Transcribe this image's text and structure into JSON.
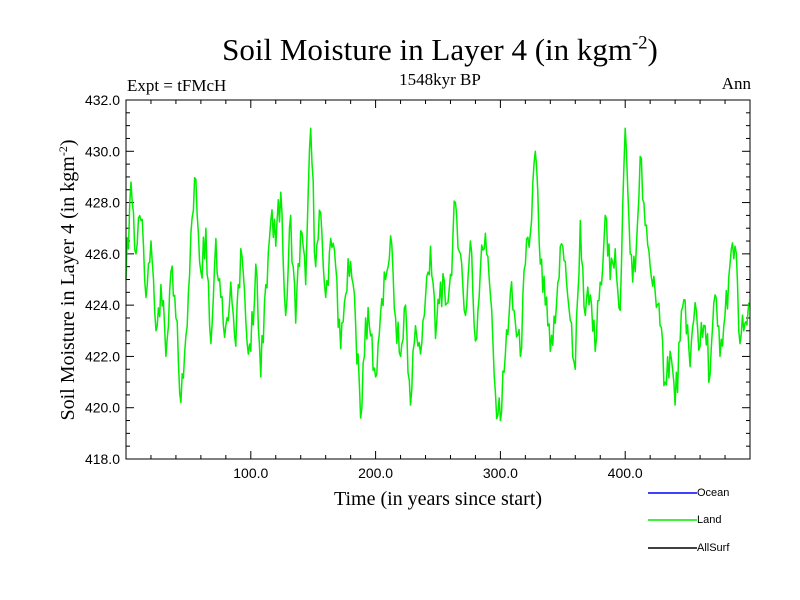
{
  "header": {
    "title_main": "Soil Moisture in Layer 4 (in kgm",
    "title_sup": "-2",
    "title_end": ")",
    "subtitle": "1548kyr BP",
    "expt": "Expt = tFMcH",
    "season": "Ann"
  },
  "chart_data": {
    "type": "line",
    "title": "Soil Moisture in Layer 4 (in kgm-2)",
    "xlabel": "Time (in years since start)",
    "ylabel_main": "Soil Moisture in Layer 4 (in kgm",
    "ylabel_sup": "-2",
    "ylabel_end": ")",
    "xlim": [
      0,
      500
    ],
    "ylim": [
      418.0,
      432.0
    ],
    "xticks": [
      100,
      200,
      300,
      400
    ],
    "xtick_labels": [
      "100.0",
      "200.0",
      "300.0",
      "400.0"
    ],
    "yticks": [
      418,
      420,
      422,
      424,
      426,
      428,
      430,
      432
    ],
    "ytick_labels": [
      "418.0",
      "420.0",
      "422.0",
      "424.0",
      "426.0",
      "428.0",
      "430.0",
      "432.0"
    ],
    "legend": [
      "Ocean",
      "Land",
      "AllSurf"
    ],
    "legend_position": "bottom-right",
    "series": [
      {
        "name": "Ocean",
        "color": "#0000ff",
        "x": [],
        "values": []
      },
      {
        "name": "AllSurf",
        "color": "#000000",
        "x": [],
        "values": []
      },
      {
        "name": "Land",
        "color": "#00ee00",
        "x": [
          0,
          4,
          8,
          12,
          16,
          20,
          24,
          28,
          32,
          36,
          40,
          44,
          48,
          52,
          56,
          60,
          64,
          68,
          72,
          76,
          80,
          84,
          88,
          92,
          96,
          100,
          104,
          108,
          112,
          116,
          120,
          124,
          128,
          132,
          136,
          140,
          144,
          148,
          152,
          156,
          160,
          164,
          168,
          172,
          176,
          180,
          184,
          188,
          192,
          196,
          200,
          204,
          208,
          212,
          216,
          220,
          224,
          228,
          232,
          236,
          240,
          244,
          248,
          252,
          256,
          260,
          264,
          268,
          272,
          276,
          280,
          284,
          288,
          292,
          296,
          300,
          304,
          308,
          312,
          316,
          320,
          324,
          328,
          332,
          336,
          340,
          344,
          348,
          352,
          356,
          360,
          364,
          368,
          372,
          376,
          380,
          384,
          388,
          392,
          396,
          400,
          404,
          408,
          412,
          416,
          420,
          424,
          428,
          432,
          436,
          440,
          444,
          448,
          452,
          456,
          460,
          464,
          468,
          472,
          476,
          480,
          484,
          488,
          492,
          496,
          499
        ],
        "values": [
          425.0,
          428.8,
          426.0,
          427.3,
          424.3,
          426.5,
          423.0,
          424.8,
          422.0,
          425.3,
          423.5,
          420.2,
          422.8,
          426.8,
          428.9,
          425.3,
          427.0,
          422.5,
          426.6,
          424.3,
          423.2,
          424.9,
          422.4,
          426.2,
          423.4,
          422.2,
          425.6,
          421.2,
          424.8,
          427.3,
          426.3,
          428.4,
          423.6,
          427.5,
          423.3,
          426.9,
          424.8,
          430.9,
          425.5,
          427.6,
          424.3,
          426.6,
          425.5,
          422.3,
          424.4,
          425.7,
          423.3,
          419.6,
          423.5,
          422.8,
          421.2,
          423.7,
          425.0,
          426.7,
          423.5,
          422.0,
          424.0,
          420.1,
          423.2,
          422.1,
          424.3,
          426.3,
          422.7,
          424.9,
          424.0,
          425.2,
          428.0,
          426.0,
          423.6,
          426.5,
          422.6,
          425.4,
          426.8,
          424.4,
          420.6,
          419.5,
          422.1,
          424.5,
          423.3,
          422.0,
          425.6,
          426.8,
          430.0,
          425.6,
          424.0,
          422.2,
          423.3,
          426.3,
          425.7,
          423.4,
          421.5,
          427.3,
          423.6,
          424.4,
          422.2,
          424.9,
          427.5,
          425.0,
          426.2,
          423.8,
          430.9,
          426.0,
          425.3,
          429.8,
          427.1,
          425.5,
          424.5,
          423.2,
          421.0,
          422.2,
          420.1,
          422.6,
          424.2,
          421.6,
          424.1,
          422.4,
          423.2,
          421.3,
          424.4,
          422.0,
          423.6,
          425.6,
          426.3,
          422.5,
          423.3,
          424.1
        ]
      }
    ]
  }
}
